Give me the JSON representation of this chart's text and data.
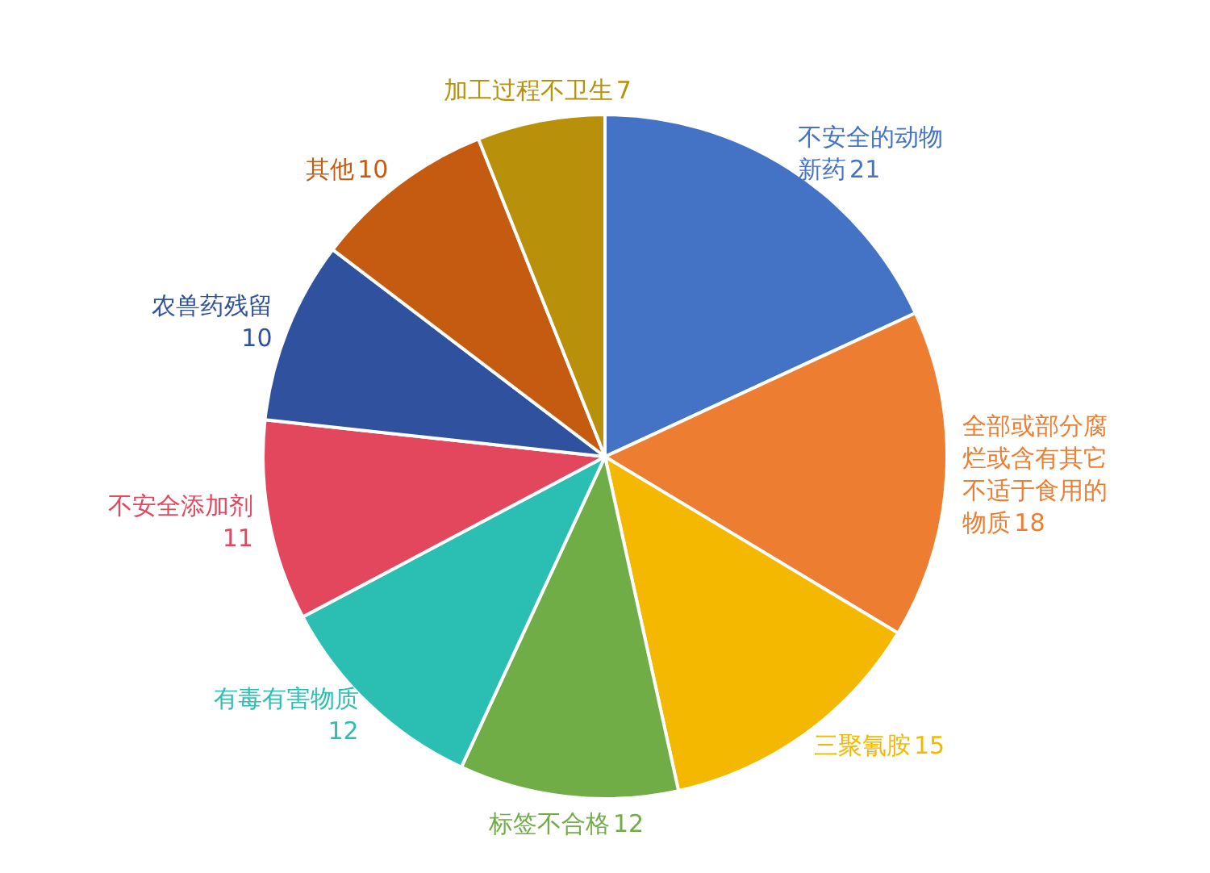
{
  "chart_data": {
    "type": "pie",
    "categories": [
      "不安全的动物新药",
      "全部或部分腐烂或含有其它不适于食用的物质",
      "三聚氰胺",
      "标签不合格",
      "有毒有害物质",
      "不安全添加剂",
      "农兽药残留",
      "其他",
      "加工过程不卫生"
    ],
    "values": [
      21,
      18,
      15,
      12,
      12,
      11,
      10,
      10,
      7
    ],
    "colors": [
      "#4472c4",
      "#ed7d31",
      "#f5b800",
      "#70ad47",
      "#2bbfb3",
      "#e2475e",
      "#2f519e",
      "#c55a11",
      "#b8900a"
    ],
    "data_labels": true,
    "legend": false
  }
}
